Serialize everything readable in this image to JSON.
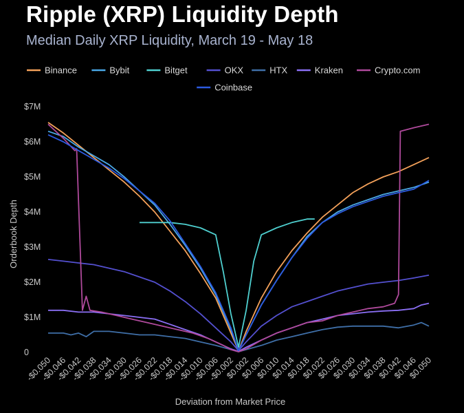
{
  "title": "Ripple (XRP) Liquidity Depth",
  "subtitle": "Median Daily XRP Liquidity, March 19 - May 18",
  "chart_data": {
    "type": "line",
    "title": "Ripple (XRP) Liquidity Depth",
    "subtitle": "Median Daily XRP Liquidity, March 19 - May 18",
    "xlabel": "Deviation from Market Price",
    "ylabel": "Orderbook Depth",
    "xlim": [
      -0.05,
      0.05
    ],
    "ylim": [
      0,
      7000000
    ],
    "grid": false,
    "legend_position": "top",
    "y_ticks": [
      {
        "value": 0,
        "label": "0"
      },
      {
        "value": 1000000,
        "label": "$1M"
      },
      {
        "value": 2000000,
        "label": "$2M"
      },
      {
        "value": 3000000,
        "label": "$3M"
      },
      {
        "value": 4000000,
        "label": "$4M"
      },
      {
        "value": 5000000,
        "label": "$5M"
      },
      {
        "value": 6000000,
        "label": "$6M"
      },
      {
        "value": 7000000,
        "label": "$7M"
      }
    ],
    "x_ticks": [
      {
        "value": -0.05,
        "label": "-$0.050"
      },
      {
        "value": -0.046,
        "label": "-$0.046"
      },
      {
        "value": -0.042,
        "label": "-$0.042"
      },
      {
        "value": -0.038,
        "label": "-$0.038"
      },
      {
        "value": -0.034,
        "label": "-$0.034"
      },
      {
        "value": -0.03,
        "label": "-$0.030"
      },
      {
        "value": -0.026,
        "label": "-$0.026"
      },
      {
        "value": -0.022,
        "label": "-$0.022"
      },
      {
        "value": -0.018,
        "label": "-$0.018"
      },
      {
        "value": -0.014,
        "label": "-$0.014"
      },
      {
        "value": -0.01,
        "label": "-$0.010"
      },
      {
        "value": -0.006,
        "label": "-$0.006"
      },
      {
        "value": -0.002,
        "label": "-$0.002"
      },
      {
        "value": 0.002,
        "label": "$0.002"
      },
      {
        "value": 0.006,
        "label": "$0.006"
      },
      {
        "value": 0.01,
        "label": "$0.010"
      },
      {
        "value": 0.014,
        "label": "$0.014"
      },
      {
        "value": 0.018,
        "label": "$0.018"
      },
      {
        "value": 0.022,
        "label": "$0.022"
      },
      {
        "value": 0.026,
        "label": "$0.026"
      },
      {
        "value": 0.03,
        "label": "$0.030"
      },
      {
        "value": 0.034,
        "label": "$0.034"
      },
      {
        "value": 0.038,
        "label": "$0.038"
      },
      {
        "value": 0.042,
        "label": "$0.042"
      },
      {
        "value": 0.046,
        "label": "$0.046"
      },
      {
        "value": 0.05,
        "label": "$0.050"
      }
    ],
    "series": [
      {
        "name": "Binance",
        "color": "#f4a15a",
        "points": [
          [
            -0.05,
            6.55
          ],
          [
            -0.046,
            6.25
          ],
          [
            -0.042,
            5.9
          ],
          [
            -0.038,
            5.55
          ],
          [
            -0.034,
            5.2
          ],
          [
            -0.03,
            4.85
          ],
          [
            -0.026,
            4.45
          ],
          [
            -0.022,
            4.0
          ],
          [
            -0.018,
            3.45
          ],
          [
            -0.014,
            2.9
          ],
          [
            -0.01,
            2.25
          ],
          [
            -0.006,
            1.55
          ],
          [
            -0.002,
            0.55
          ],
          [
            0.0,
            0.05
          ],
          [
            0.002,
            0.6
          ],
          [
            0.006,
            1.55
          ],
          [
            0.01,
            2.3
          ],
          [
            0.014,
            2.9
          ],
          [
            0.018,
            3.4
          ],
          [
            0.022,
            3.85
          ],
          [
            0.026,
            4.2
          ],
          [
            0.03,
            4.55
          ],
          [
            0.034,
            4.8
          ],
          [
            0.038,
            5.0
          ],
          [
            0.042,
            5.15
          ],
          [
            0.046,
            5.35
          ],
          [
            0.05,
            5.55
          ]
        ]
      },
      {
        "name": "Bybit",
        "color": "#4aa8e6",
        "points": [
          [
            -0.05,
            6.3
          ],
          [
            -0.046,
            6.15
          ],
          [
            -0.042,
            5.85
          ],
          [
            -0.038,
            5.6
          ],
          [
            -0.034,
            5.35
          ],
          [
            -0.03,
            5.0
          ],
          [
            -0.026,
            4.6
          ],
          [
            -0.022,
            4.2
          ],
          [
            -0.018,
            3.65
          ],
          [
            -0.014,
            3.05
          ],
          [
            -0.01,
            2.4
          ],
          [
            -0.006,
            1.65
          ],
          [
            -0.002,
            0.65
          ],
          [
            0.0,
            0.05
          ],
          [
            0.002,
            0.5
          ],
          [
            0.006,
            1.35
          ],
          [
            0.01,
            2.05
          ],
          [
            0.014,
            2.7
          ],
          [
            0.018,
            3.3
          ],
          [
            0.022,
            3.7
          ],
          [
            0.026,
            4.0
          ],
          [
            0.03,
            4.2
          ],
          [
            0.034,
            4.35
          ],
          [
            0.038,
            4.5
          ],
          [
            0.042,
            4.6
          ],
          [
            0.046,
            4.7
          ],
          [
            0.05,
            4.85
          ]
        ]
      },
      {
        "name": "Bitget",
        "color": "#4fd0d0",
        "points": [
          [
            -0.026,
            3.7
          ],
          [
            -0.022,
            3.7
          ],
          [
            -0.018,
            3.7
          ],
          [
            -0.014,
            3.65
          ],
          [
            -0.01,
            3.55
          ],
          [
            -0.006,
            3.35
          ],
          [
            -0.004,
            2.3
          ],
          [
            -0.002,
            1.1
          ],
          [
            0.0,
            0.15
          ],
          [
            0.002,
            1.2
          ],
          [
            0.004,
            2.6
          ],
          [
            0.006,
            3.35
          ],
          [
            0.01,
            3.55
          ],
          [
            0.014,
            3.7
          ],
          [
            0.018,
            3.8
          ],
          [
            0.02,
            3.8
          ]
        ]
      },
      {
        "name": "OKX",
        "color": "#5450d0",
        "points": [
          [
            -0.05,
            2.65
          ],
          [
            -0.046,
            2.6
          ],
          [
            -0.042,
            2.55
          ],
          [
            -0.038,
            2.5
          ],
          [
            -0.034,
            2.4
          ],
          [
            -0.03,
            2.3
          ],
          [
            -0.026,
            2.15
          ],
          [
            -0.022,
            2.0
          ],
          [
            -0.018,
            1.75
          ],
          [
            -0.014,
            1.45
          ],
          [
            -0.01,
            1.1
          ],
          [
            -0.006,
            0.7
          ],
          [
            -0.002,
            0.3
          ],
          [
            0.0,
            0.05
          ],
          [
            0.002,
            0.3
          ],
          [
            0.006,
            0.75
          ],
          [
            0.01,
            1.05
          ],
          [
            0.014,
            1.3
          ],
          [
            0.018,
            1.45
          ],
          [
            0.022,
            1.6
          ],
          [
            0.026,
            1.75
          ],
          [
            0.03,
            1.85
          ],
          [
            0.034,
            1.95
          ],
          [
            0.038,
            2.0
          ],
          [
            0.042,
            2.05
          ],
          [
            0.046,
            2.12
          ],
          [
            0.05,
            2.2
          ]
        ]
      },
      {
        "name": "HTX",
        "color": "#3f6fa8",
        "points": [
          [
            -0.05,
            0.55
          ],
          [
            -0.046,
            0.55
          ],
          [
            -0.044,
            0.5
          ],
          [
            -0.042,
            0.55
          ],
          [
            -0.04,
            0.45
          ],
          [
            -0.038,
            0.6
          ],
          [
            -0.034,
            0.6
          ],
          [
            -0.03,
            0.55
          ],
          [
            -0.026,
            0.5
          ],
          [
            -0.022,
            0.5
          ],
          [
            -0.018,
            0.45
          ],
          [
            -0.014,
            0.4
          ],
          [
            -0.01,
            0.3
          ],
          [
            -0.006,
            0.2
          ],
          [
            -0.002,
            0.08
          ],
          [
            0.0,
            0.02
          ],
          [
            0.002,
            0.08
          ],
          [
            0.006,
            0.2
          ],
          [
            0.01,
            0.35
          ],
          [
            0.014,
            0.45
          ],
          [
            0.018,
            0.55
          ],
          [
            0.022,
            0.65
          ],
          [
            0.026,
            0.72
          ],
          [
            0.03,
            0.75
          ],
          [
            0.034,
            0.75
          ],
          [
            0.038,
            0.75
          ],
          [
            0.042,
            0.7
          ],
          [
            0.046,
            0.78
          ],
          [
            0.048,
            0.85
          ],
          [
            0.05,
            0.75
          ]
        ]
      },
      {
        "name": "Kraken",
        "color": "#8b6ff5",
        "points": [
          [
            -0.05,
            1.2
          ],
          [
            -0.046,
            1.2
          ],
          [
            -0.042,
            1.15
          ],
          [
            -0.038,
            1.15
          ],
          [
            -0.034,
            1.1
          ],
          [
            -0.03,
            1.05
          ],
          [
            -0.026,
            1.0
          ],
          [
            -0.022,
            0.95
          ],
          [
            -0.018,
            0.8
          ],
          [
            -0.014,
            0.65
          ],
          [
            -0.01,
            0.5
          ],
          [
            -0.006,
            0.3
          ],
          [
            -0.002,
            0.1
          ],
          [
            0.0,
            0.03
          ],
          [
            0.002,
            0.15
          ],
          [
            0.006,
            0.35
          ],
          [
            0.01,
            0.55
          ],
          [
            0.014,
            0.7
          ],
          [
            0.018,
            0.85
          ],
          [
            0.022,
            0.95
          ],
          [
            0.026,
            1.05
          ],
          [
            0.03,
            1.1
          ],
          [
            0.034,
            1.15
          ],
          [
            0.038,
            1.18
          ],
          [
            0.042,
            1.2
          ],
          [
            0.046,
            1.25
          ],
          [
            0.048,
            1.35
          ],
          [
            0.05,
            1.4
          ]
        ]
      },
      {
        "name": "Crypto.com",
        "color": "#b04a9c",
        "points": [
          [
            -0.05,
            6.5
          ],
          [
            -0.046,
            6.1
          ],
          [
            -0.043,
            5.75
          ],
          [
            -0.0425,
            5.8
          ],
          [
            -0.041,
            1.2
          ],
          [
            -0.04,
            1.6
          ],
          [
            -0.039,
            1.2
          ],
          [
            -0.036,
            1.15
          ],
          [
            -0.032,
            1.05
          ],
          [
            -0.028,
            0.95
          ],
          [
            -0.024,
            0.85
          ],
          [
            -0.02,
            0.75
          ],
          [
            -0.016,
            0.65
          ],
          [
            -0.012,
            0.55
          ],
          [
            -0.008,
            0.4
          ],
          [
            -0.004,
            0.2
          ],
          [
            -0.002,
            0.08
          ],
          [
            0.0,
            0.02
          ],
          [
            0.002,
            0.1
          ],
          [
            0.006,
            0.35
          ],
          [
            0.01,
            0.55
          ],
          [
            0.014,
            0.7
          ],
          [
            0.018,
            0.85
          ],
          [
            0.022,
            0.9
          ],
          [
            0.026,
            1.05
          ],
          [
            0.03,
            1.15
          ],
          [
            0.034,
            1.25
          ],
          [
            0.038,
            1.3
          ],
          [
            0.041,
            1.4
          ],
          [
            0.042,
            1.65
          ],
          [
            0.0425,
            6.3
          ],
          [
            0.046,
            6.4
          ],
          [
            0.05,
            6.5
          ]
        ]
      },
      {
        "name": "Coinbase",
        "color": "#2c5be0",
        "points": [
          [
            -0.05,
            6.2
          ],
          [
            -0.046,
            6.0
          ],
          [
            -0.042,
            5.75
          ],
          [
            -0.038,
            5.5
          ],
          [
            -0.034,
            5.25
          ],
          [
            -0.03,
            4.95
          ],
          [
            -0.026,
            4.6
          ],
          [
            -0.022,
            4.25
          ],
          [
            -0.018,
            3.75
          ],
          [
            -0.014,
            3.1
          ],
          [
            -0.01,
            2.45
          ],
          [
            -0.006,
            1.7
          ],
          [
            -0.002,
            0.7
          ],
          [
            0.0,
            0.05
          ],
          [
            0.002,
            0.5
          ],
          [
            0.006,
            1.35
          ],
          [
            0.01,
            2.05
          ],
          [
            0.014,
            2.7
          ],
          [
            0.018,
            3.25
          ],
          [
            0.022,
            3.7
          ],
          [
            0.026,
            3.95
          ],
          [
            0.03,
            4.15
          ],
          [
            0.034,
            4.3
          ],
          [
            0.038,
            4.45
          ],
          [
            0.042,
            4.55
          ],
          [
            0.046,
            4.65
          ],
          [
            0.05,
            4.9
          ]
        ]
      }
    ],
    "y_value_unit": "millions USD"
  }
}
